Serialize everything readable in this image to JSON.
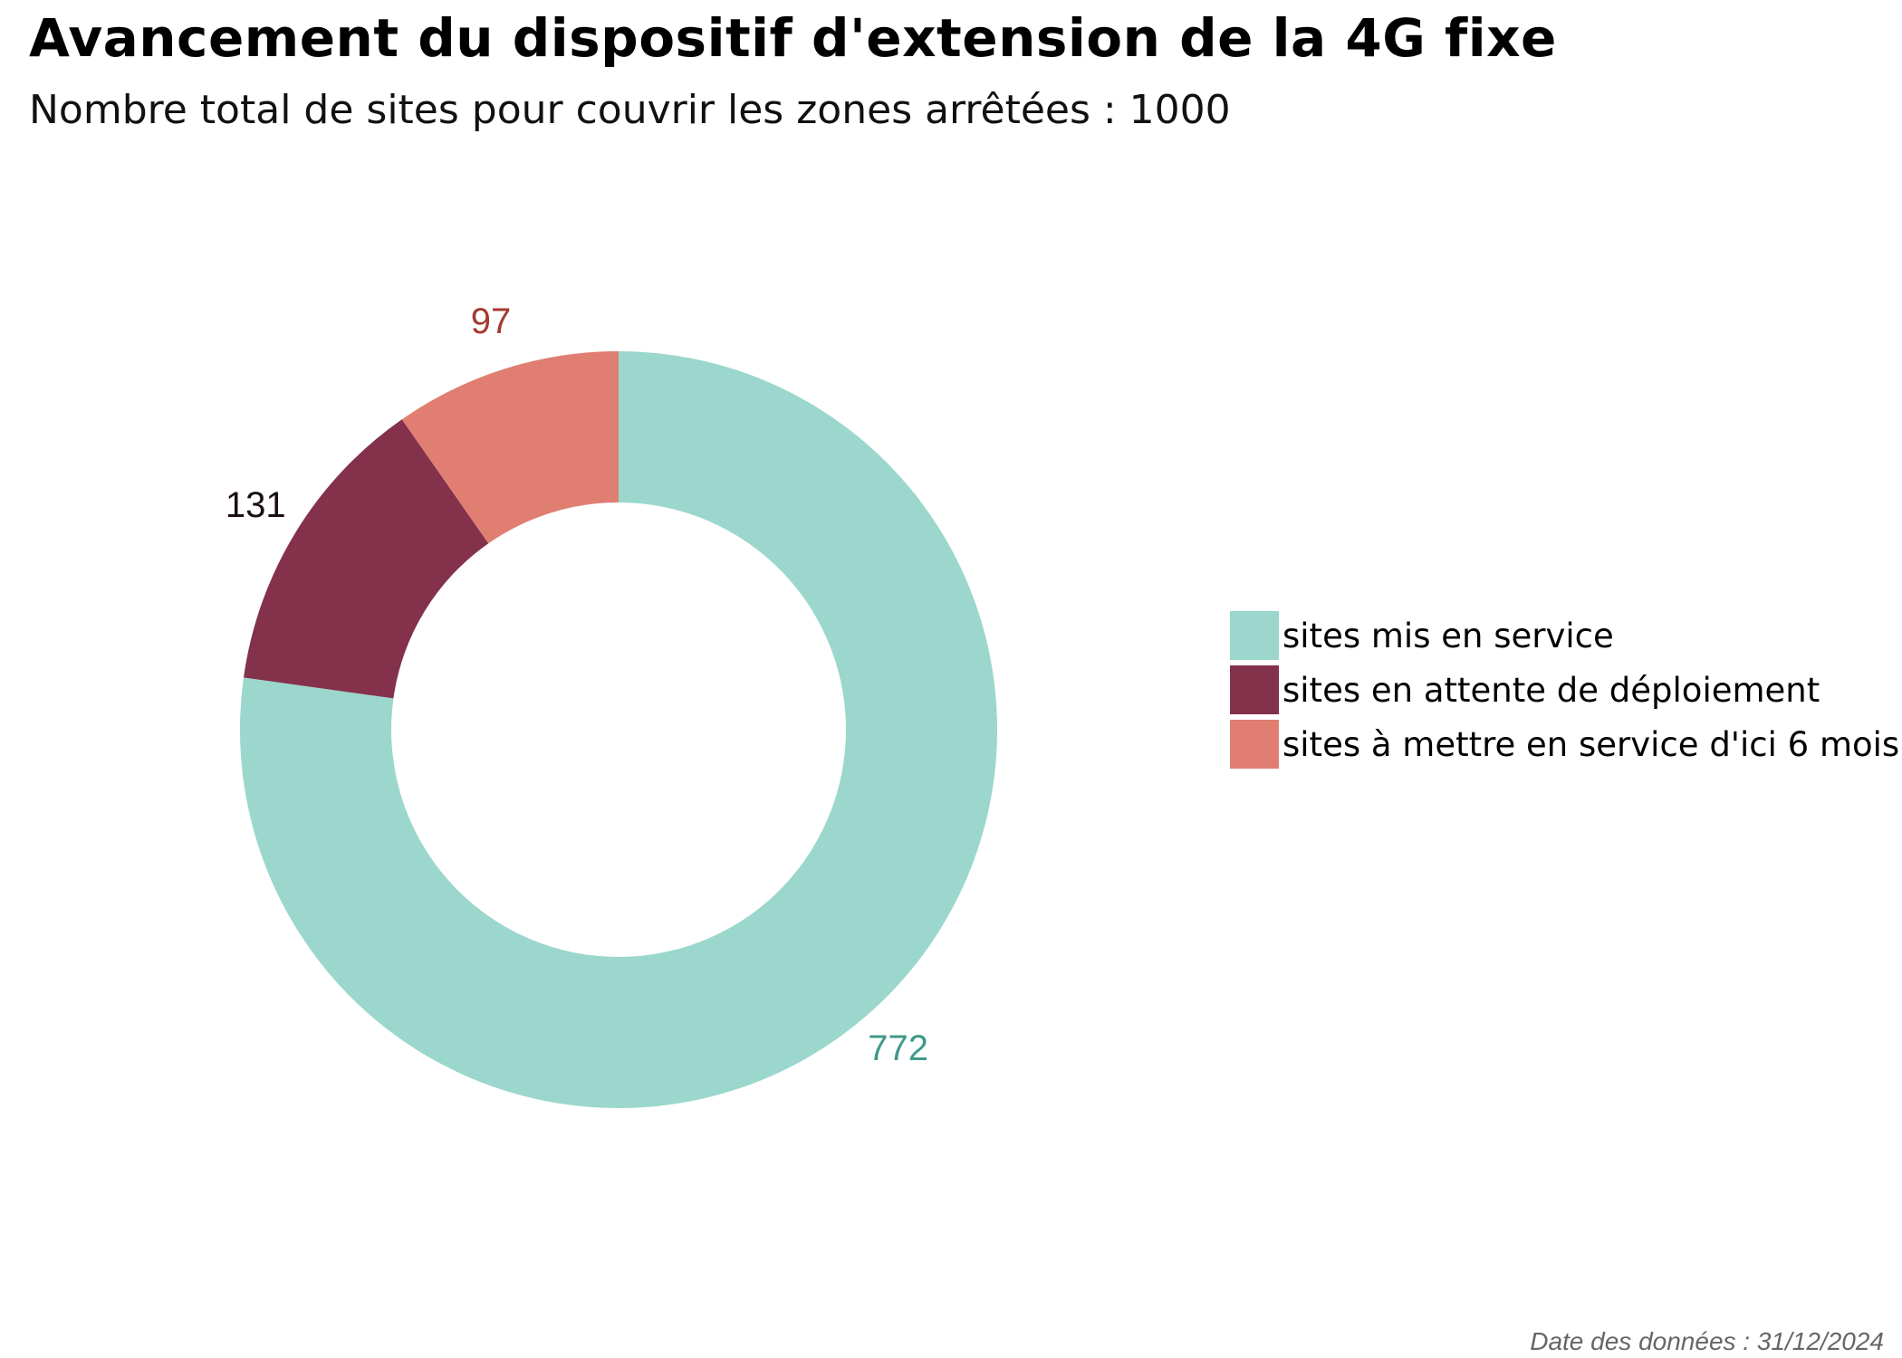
{
  "title": "Avancement du dispositif d'extension de la 4G fixe",
  "subtitle": "Nombre total de sites pour couvrir les zones arrêtées : 1000",
  "source_date": "Date des données : 31/12/2024",
  "chart_data": {
    "type": "pie",
    "variant": "donut",
    "total": 1000,
    "start": "12 o'clock",
    "direction": "clockwise",
    "legend_position": "right",
    "slices": [
      {
        "name": "sites mis en service",
        "value": 772,
        "color": "#9BD7CC",
        "label_color": "#3F9A8A"
      },
      {
        "name": "sites en attente de déploiement",
        "value": 131,
        "color": "#84314B",
        "label_color": "#1A0E12"
      },
      {
        "name": "sites à mettre en service d'ici 6 mois",
        "value": 97,
        "color": "#E07E72",
        "label_color": "#A33A32"
      }
    ]
  }
}
